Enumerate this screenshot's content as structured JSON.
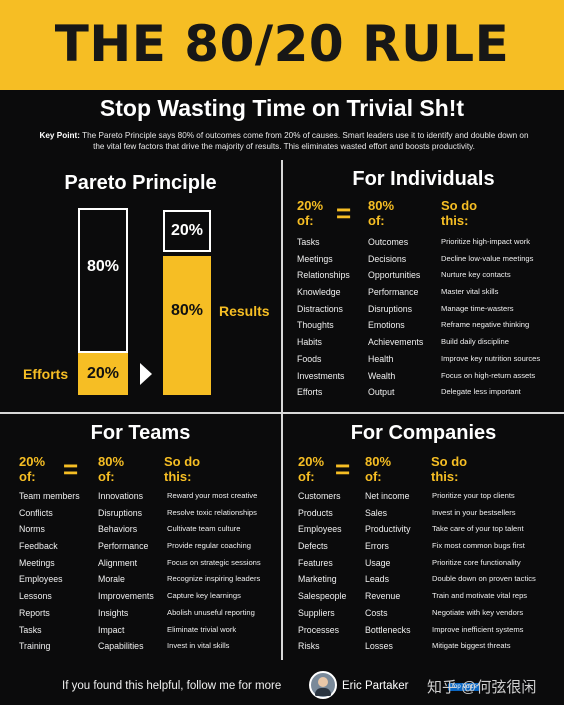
{
  "header": {
    "title": "THE 80/20 RULE",
    "subtitle": "Stop Wasting Time on Trivial Sh!t"
  },
  "key_point": {
    "label": "Key Point:",
    "text": "The Pareto Principle says 80% of outcomes come from 20% of causes. Smart leaders use it to identify and double down on the vital few factors that drive the majority of results. This eliminates wasted effort and boosts productivity."
  },
  "pareto": {
    "title": "Pareto Principle",
    "efforts_label": "Efforts",
    "results_label": "Results",
    "efforts_top": "80%",
    "efforts_bottom": "20%",
    "results_top": "20%",
    "results_bottom": "80%",
    "accent": "#f6be24"
  },
  "individuals": {
    "title": "For Individuals",
    "h1": "20% of:",
    "eq": "=",
    "h2": "80% of:",
    "h3": "So do this:",
    "c1": [
      "Tasks",
      "Meetings",
      "Relationships",
      "Knowledge",
      "Distractions",
      "Thoughts",
      "Habits",
      "Foods",
      "Investments",
      "Efforts"
    ],
    "c2": [
      "Outcomes",
      "Decisions",
      "Opportunities",
      "Performance",
      "Disruptions",
      "Emotions",
      "Achievements",
      "Health",
      "Wealth",
      "Output"
    ],
    "c3": [
      "Prioritize high-impact work",
      "Decline low-value meetings",
      "Nurture key contacts",
      "Master vital skills",
      "Manage time-wasters",
      "Reframe negative thinking",
      "Build daily discipline",
      "Improve key nutrition sources",
      "Focus on high-return assets",
      "Delegate less important"
    ]
  },
  "teams": {
    "title": "For Teams",
    "h1": "20% of:",
    "eq": "=",
    "h2": "80% of:",
    "h3": "So do this:",
    "c1": [
      "Team members",
      "Conflicts",
      "Norms",
      "Feedback",
      "Meetings",
      "Employees",
      "Lessons",
      "Reports",
      "Tasks",
      "Training"
    ],
    "c2": [
      "Innovations",
      "Disruptions",
      "Behaviors",
      "Performance",
      "Alignment",
      "Morale",
      "Improvements",
      "Insights",
      "Impact",
      "Capabilities"
    ],
    "c3": [
      "Reward your most creative",
      "Resolve toxic relationships",
      "Cultivate team culture",
      "Provide regular coaching",
      "Focus on strategic sessions",
      "Recognize inspiring leaders",
      "Capture key learnings",
      "Abolish unuseful reporting",
      "Eliminate trivial work",
      "Invest in vital skills"
    ]
  },
  "companies": {
    "title": "For Companies",
    "h1": "20% of:",
    "eq": "=",
    "h2": "80% of:",
    "h3": "So do this:",
    "c1": [
      "Customers",
      "Products",
      "Employees",
      "Defects",
      "Features",
      "Marketing",
      "Salespeople",
      "Suppliers",
      "Processes",
      "Risks"
    ],
    "c2": [
      "Net income",
      "Sales",
      "Productivity",
      "Errors",
      "Usage",
      "Leads",
      "Revenue",
      "Costs",
      "Bottlenecks",
      "Losses"
    ],
    "c3": [
      "Prioritize your top clients",
      "Invest in your bestsellers",
      "Take care of your top talent",
      "Fix most common bugs first",
      "Prioritize core functionality",
      "Double down on proven tactics",
      "Train and motivate vital reps",
      "Negotiate with key vendors",
      "Improve inefficient systems",
      "Mitigate biggest threats"
    ]
  },
  "footer": {
    "cta": "If you found this helpful, follow me for more",
    "author": "Eric Partaker",
    "badge": "Top Voice",
    "watermark": "知乎 @何弦很闲"
  }
}
